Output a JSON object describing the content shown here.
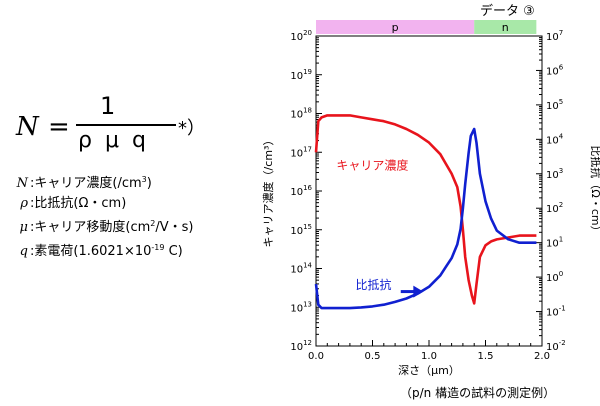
{
  "formula": {
    "lhs": "N",
    "eq": "=",
    "numerator": "1",
    "denominator": "ρ μ q",
    "note": "*）"
  },
  "definitions": [
    {
      "symbol": "N",
      "text": "キャリア濃度(/cm",
      "sup": "3",
      "tail": ")"
    },
    {
      "symbol": "ρ",
      "text": "比抵抗(Ω・cm)",
      "sup": "",
      "tail": ""
    },
    {
      "symbol": "μ",
      "text": "キャリア移動度(cm",
      "sup": "2",
      "tail": "/V・s)"
    },
    {
      "symbol": "q",
      "text": "素電荷(1.6021×10",
      "sup": "-19",
      "tail": " C)"
    }
  ],
  "badge": "データ ③",
  "caption": "（p/n 構造の試料の測定例）",
  "colors": {
    "carrier": "#e8141c",
    "resistivity": "#1020d0",
    "p_region": "#f2b3ef",
    "n_region": "#a8e8a8",
    "arrow": "#1020d0"
  },
  "chart_data": {
    "type": "line",
    "regions": [
      {
        "label": "p",
        "x_start": 0.0,
        "x_end": 1.4
      },
      {
        "label": "n",
        "x_start": 1.4,
        "x_end": 1.95
      }
    ],
    "xlabel": "深さ（μm）",
    "xticks": [
      "0.0",
      "0.5",
      "1.0",
      "1.5",
      "2.0"
    ],
    "xlim": [
      0.0,
      2.0
    ],
    "ylabel_left": "キャリア濃度（/cm³）",
    "ylim_left_exp": [
      12,
      20
    ],
    "ylabel_right": "比抵抗（Ω・cm）",
    "ylim_right_exp": [
      -2,
      7
    ],
    "log_scale": true,
    "series": [
      {
        "name": "キャリア濃度",
        "axis": "left",
        "color": "#e8141c",
        "x": [
          0.0,
          0.02,
          0.05,
          0.1,
          0.2,
          0.3,
          0.4,
          0.5,
          0.6,
          0.7,
          0.8,
          0.9,
          1.0,
          1.1,
          1.15,
          1.2,
          1.25,
          1.28,
          1.3,
          1.32,
          1.35,
          1.38,
          1.4,
          1.42,
          1.45,
          1.5,
          1.55,
          1.6,
          1.7,
          1.8,
          1.9,
          1.95
        ],
        "log": [
          17.0,
          17.8,
          17.9,
          17.95,
          17.95,
          17.95,
          17.9,
          17.85,
          17.8,
          17.72,
          17.6,
          17.45,
          17.25,
          16.95,
          16.7,
          16.45,
          16.1,
          15.6,
          15.0,
          14.3,
          13.7,
          13.3,
          13.1,
          13.6,
          14.3,
          14.6,
          14.7,
          14.75,
          14.8,
          14.85,
          14.85,
          14.85
        ]
      },
      {
        "name": "比抵抗",
        "axis": "right",
        "color": "#1020d0",
        "x": [
          0.0,
          0.02,
          0.05,
          0.1,
          0.2,
          0.3,
          0.4,
          0.5,
          0.6,
          0.7,
          0.8,
          0.9,
          1.0,
          1.1,
          1.15,
          1.2,
          1.25,
          1.28,
          1.3,
          1.32,
          1.35,
          1.37,
          1.4,
          1.42,
          1.45,
          1.5,
          1.55,
          1.6,
          1.7,
          1.8,
          1.9,
          1.95
        ],
        "log": [
          -0.2,
          -0.8,
          -0.9,
          -0.9,
          -0.9,
          -0.9,
          -0.88,
          -0.85,
          -0.8,
          -0.72,
          -0.62,
          -0.48,
          -0.28,
          0.05,
          0.3,
          0.55,
          0.95,
          1.4,
          2.0,
          2.7,
          3.6,
          4.1,
          4.3,
          3.9,
          3.0,
          2.2,
          1.7,
          1.35,
          1.1,
          1.0,
          1.0,
          1.0
        ]
      }
    ],
    "annotations": [
      {
        "text": "キャリア濃度",
        "color": "#e8141c"
      },
      {
        "text": "比抵抗",
        "color": "#1020d0"
      }
    ]
  }
}
